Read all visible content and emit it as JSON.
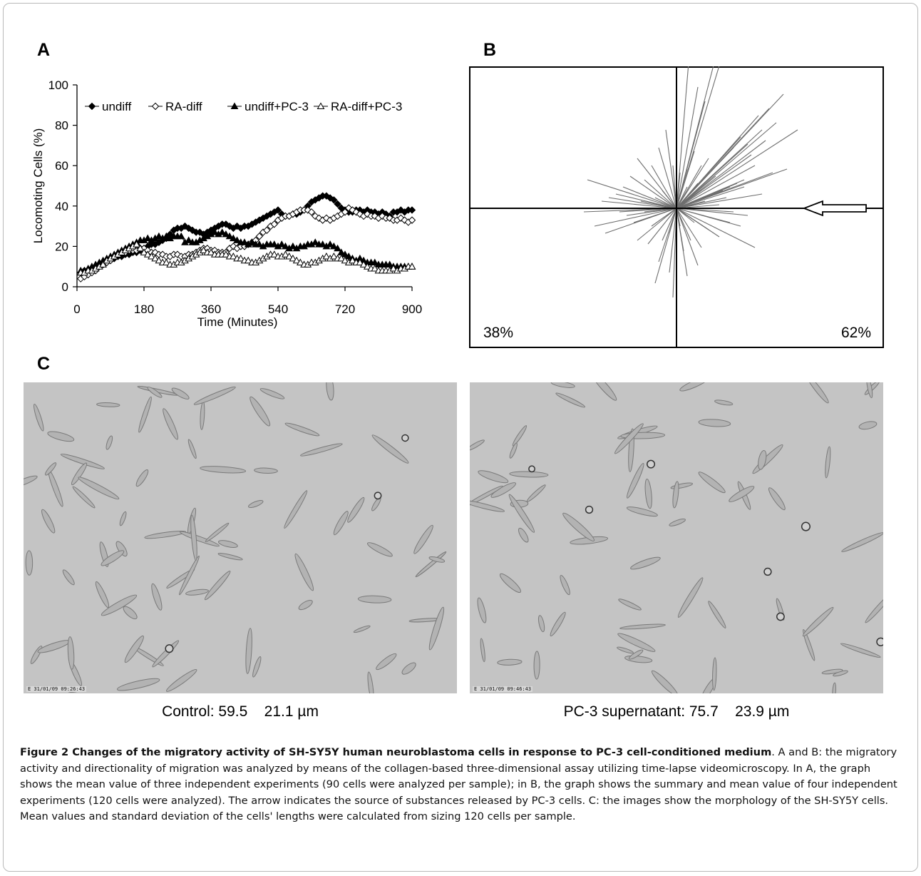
{
  "panels": {
    "a": {
      "letter": "A"
    },
    "b": {
      "letter": "B"
    },
    "c": {
      "letter": "C"
    }
  },
  "chart_data": [
    {
      "type": "line",
      "panel": "A",
      "xlabel": "Time (Minutes)",
      "ylabel": "Locomoting Cells (%)",
      "xlim": [
        0,
        900
      ],
      "ylim": [
        0,
        100
      ],
      "xticks": [
        0,
        180,
        360,
        540,
        720,
        900
      ],
      "yticks": [
        0,
        20,
        40,
        60,
        80,
        100
      ],
      "grid": false,
      "legend": "top",
      "x": [
        10,
        20,
        30,
        40,
        50,
        60,
        70,
        80,
        90,
        100,
        110,
        120,
        130,
        140,
        150,
        160,
        170,
        180,
        190,
        200,
        210,
        220,
        230,
        240,
        250,
        260,
        270,
        280,
        290,
        300,
        310,
        320,
        330,
        340,
        350,
        360,
        370,
        380,
        390,
        400,
        410,
        420,
        430,
        440,
        450,
        460,
        470,
        480,
        490,
        500,
        510,
        520,
        530,
        540,
        550,
        560,
        570,
        580,
        590,
        600,
        610,
        620,
        630,
        640,
        650,
        660,
        670,
        680,
        690,
        700,
        710,
        720,
        730,
        740,
        750,
        760,
        770,
        780,
        790,
        800,
        810,
        820,
        830,
        840,
        850,
        860,
        870,
        880,
        890,
        900
      ],
      "series": [
        {
          "name": "undiff",
          "marker": "filled-diamond",
          "values": [
            7,
            8,
            8,
            9,
            10,
            11,
            12,
            13,
            13,
            14,
            15,
            15,
            16,
            16,
            17,
            17,
            18,
            19,
            20,
            21,
            21,
            22,
            23,
            24,
            26,
            28,
            29,
            29,
            30,
            29,
            28,
            27,
            27,
            26,
            27,
            28,
            29,
            30,
            31,
            31,
            30,
            29,
            30,
            29,
            30,
            30,
            31,
            32,
            33,
            34,
            35,
            36,
            37,
            38,
            36,
            35,
            35,
            36,
            36,
            37,
            38,
            40,
            42,
            43,
            44,
            45,
            45,
            44,
            43,
            41,
            39,
            38,
            37,
            37,
            38,
            38,
            37,
            38,
            37,
            37,
            36,
            37,
            36,
            35,
            37,
            37,
            38,
            37,
            38,
            38
          ]
        },
        {
          "name": "RA-diff",
          "marker": "open-diamond",
          "values": [
            4,
            5,
            6,
            7,
            8,
            10,
            11,
            12,
            13,
            15,
            16,
            17,
            17,
            18,
            18,
            18,
            19,
            19,
            18,
            17,
            17,
            16,
            16,
            15,
            15,
            16,
            16,
            15,
            15,
            16,
            16,
            17,
            18,
            19,
            19,
            18,
            18,
            17,
            17,
            17,
            19,
            20,
            19,
            20,
            20,
            21,
            22,
            23,
            25,
            27,
            28,
            30,
            31,
            33,
            34,
            35,
            35,
            36,
            37,
            38,
            38,
            38,
            37,
            35,
            34,
            33,
            34,
            33,
            34,
            35,
            36,
            37,
            39,
            38,
            37,
            36,
            35,
            36,
            35,
            35,
            34,
            35,
            34,
            34,
            33,
            33,
            34,
            33,
            32,
            33
          ]
        },
        {
          "name": "undiff+PC-3",
          "marker": "filled-triangle",
          "values": [
            8,
            8,
            9,
            10,
            11,
            12,
            13,
            14,
            15,
            16,
            17,
            18,
            19,
            20,
            21,
            22,
            23,
            23,
            24,
            23,
            24,
            25,
            24,
            25,
            24,
            25,
            25,
            25,
            22,
            23,
            22,
            22,
            23,
            24,
            25,
            26,
            27,
            26,
            27,
            26,
            25,
            24,
            23,
            22,
            22,
            21,
            22,
            21,
            21,
            20,
            21,
            21,
            21,
            20,
            21,
            20,
            19,
            20,
            19,
            20,
            20,
            21,
            21,
            22,
            21,
            21,
            20,
            21,
            20,
            19,
            17,
            16,
            15,
            14,
            13,
            14,
            13,
            12,
            12,
            12,
            11,
            11,
            11,
            11,
            10,
            10,
            10,
            10,
            10,
            10
          ]
        },
        {
          "name": "RA-diff+PC-3",
          "marker": "open-triangle",
          "values": [
            7,
            7,
            8,
            8,
            9,
            10,
            11,
            13,
            14,
            15,
            16,
            17,
            18,
            19,
            20,
            21,
            19,
            17,
            16,
            15,
            14,
            13,
            12,
            12,
            11,
            11,
            12,
            12,
            13,
            14,
            15,
            16,
            17,
            18,
            17,
            17,
            16,
            16,
            16,
            16,
            15,
            15,
            14,
            14,
            13,
            13,
            12,
            12,
            13,
            14,
            15,
            16,
            16,
            15,
            15,
            16,
            15,
            14,
            13,
            12,
            11,
            11,
            12,
            12,
            13,
            14,
            15,
            14,
            15,
            14,
            14,
            13,
            12,
            13,
            12,
            12,
            11,
            10,
            9,
            9,
            8,
            8,
            8,
            8,
            9,
            8,
            9,
            9,
            10,
            10
          ]
        }
      ]
    },
    {
      "type": "radial-plot",
      "panel": "B",
      "quadrant_labels": {
        "left": "38%",
        "right": "62%"
      },
      "arrow_direction": "pointing-left",
      "arrow_fill": "#ffffff"
    }
  ],
  "photos": [
    {
      "id": "control",
      "stamp": "E 31/01/09 09:26:43",
      "caption": "Control: 59.5    21.1 µm"
    },
    {
      "id": "pc3",
      "stamp": "E 31/01/09 09:46:43",
      "caption": "PC-3 supernatant: 75.7    23.9 µm"
    }
  ],
  "caption": {
    "label": "Figure 2 Changes of the migratory activity of SH-SY5Y human neuroblastoma cells in response to PC-3 cell-conditioned medium",
    "text": ". A and B: the migratory activity and directionality of migration was analyzed by means of the collagen-based three-dimensional assay utilizing time-lapse videomicroscopy. In A, the graph shows the mean value of three independent experiments (90 cells were analyzed per sample); in B, the graph shows the summary and mean value of four independent experiments (120 cells were analyzed). The arrow indicates the source of substances released by PC-3 cells. C: the images show the morphology of the SH-SY5Y cells. Mean values and standard deviation of the cells' lengths were calculated from sizing 120 cells per sample."
  },
  "colors": {
    "frame_border": "#b9b9b9",
    "plot_line": "#000000",
    "photo_background": "#c4c4c4",
    "cell": "#7a7a7a"
  }
}
